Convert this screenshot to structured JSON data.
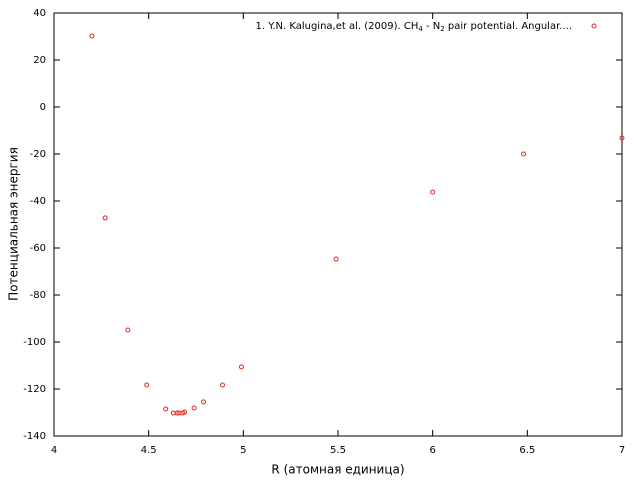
{
  "chart_data": {
    "type": "scatter",
    "xlabel": "R (атомная единица)",
    "ylabel": "Потенциальная энергия",
    "xlim": [
      4,
      7
    ],
    "xticks": [
      4,
      4.5,
      5,
      5.5,
      6,
      6.5,
      7
    ],
    "ylim": [
      -140,
      40
    ],
    "yticks": [
      -140,
      -120,
      -100,
      -80,
      -60,
      -40,
      -20,
      0,
      20,
      40
    ],
    "grid": false,
    "legend": "upper right",
    "series": [
      {
        "name": "1. Y.N. Kalugina,et al. (2009). CH4 - N2 pair potential. Angular....",
        "color": "#e8281e",
        "x": [
          4.2,
          4.27,
          4.39,
          4.49,
          4.59,
          4.63,
          4.65,
          4.66,
          4.68,
          4.69,
          4.74,
          4.79,
          4.89,
          4.99,
          5.49,
          6.0,
          6.48,
          7.0
        ],
        "values": [
          30.2,
          -47.2,
          -94.9,
          -118.3,
          -128.5,
          -130.2,
          -130.2,
          -130.2,
          -130.2,
          -129.8,
          -128.1,
          -125.5,
          -118.3,
          -110.6,
          -64.7,
          -36.2,
          -20,
          -13.2
        ]
      }
    ]
  }
}
